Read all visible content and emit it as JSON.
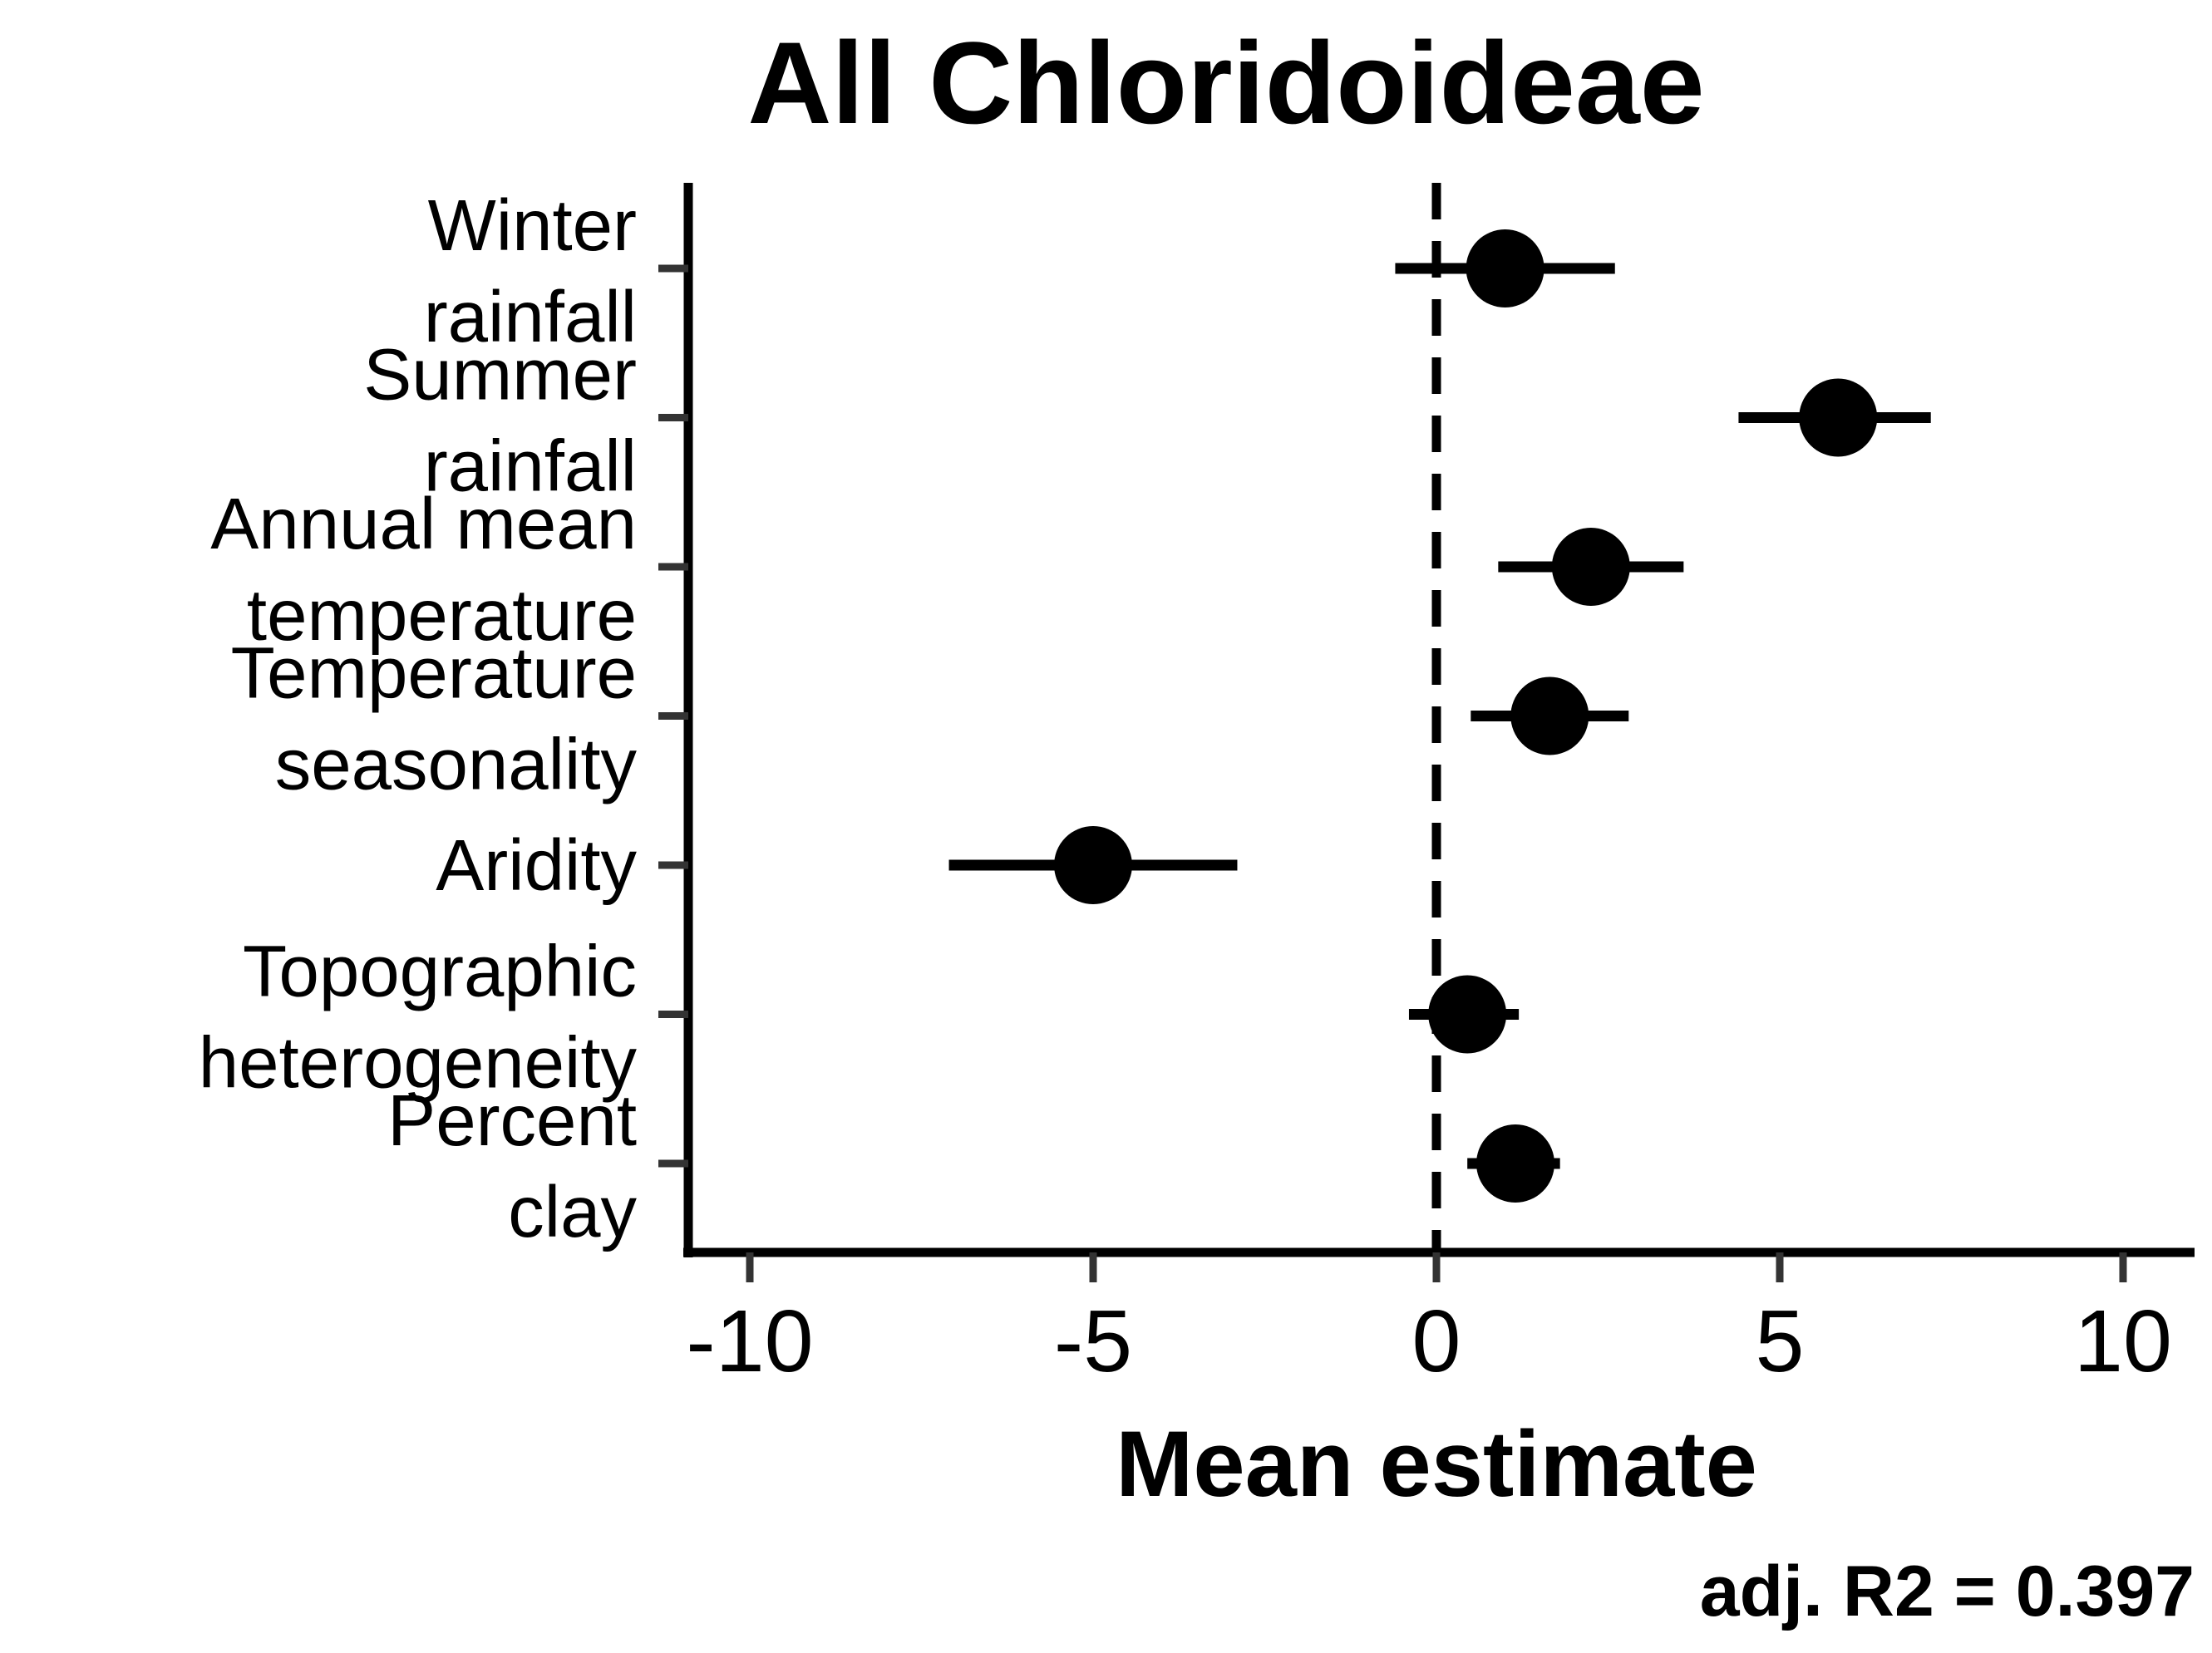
{
  "chart_data": {
    "type": "scatter",
    "title": "All Chloridoideae",
    "xlabel": "Mean estimate",
    "ylabel": "",
    "annotation": "adj. R2 = 0.397",
    "xlim": [
      -11,
      11
    ],
    "xticks": [
      -10,
      -5,
      0,
      5,
      10
    ],
    "xtick_labels": [
      "-10",
      "-5",
      "0",
      "5",
      "10"
    ],
    "reference_line": {
      "x": 0,
      "style": "dashed"
    },
    "grid": false,
    "categories": [
      {
        "lines": [
          "Winter",
          "rainfall"
        ]
      },
      {
        "lines": [
          "Summer",
          "rainfall"
        ]
      },
      {
        "lines": [
          "Annual mean",
          "temperature"
        ]
      },
      {
        "lines": [
          "Temperature",
          "seasonality"
        ]
      },
      {
        "lines": [
          "Aridity"
        ]
      },
      {
        "lines": [
          "Topographic",
          "heterogeneity"
        ]
      },
      {
        "lines": [
          "Percent",
          "clay"
        ]
      }
    ],
    "points": [
      {
        "estimate": 1.0,
        "lower": -0.6,
        "upper": 2.6
      },
      {
        "estimate": 5.85,
        "lower": 4.4,
        "upper": 7.2
      },
      {
        "estimate": 2.25,
        "lower": 0.9,
        "upper": 3.6
      },
      {
        "estimate": 1.65,
        "lower": 0.5,
        "upper": 2.8
      },
      {
        "estimate": -5.0,
        "lower": -7.1,
        "upper": -2.9
      },
      {
        "estimate": 0.45,
        "lower": -0.4,
        "upper": 1.2
      },
      {
        "estimate": 1.15,
        "lower": 0.45,
        "upper": 1.8
      }
    ],
    "colors": {
      "marks": "#000000",
      "axis": "#000000",
      "ticks": "#333333"
    }
  }
}
